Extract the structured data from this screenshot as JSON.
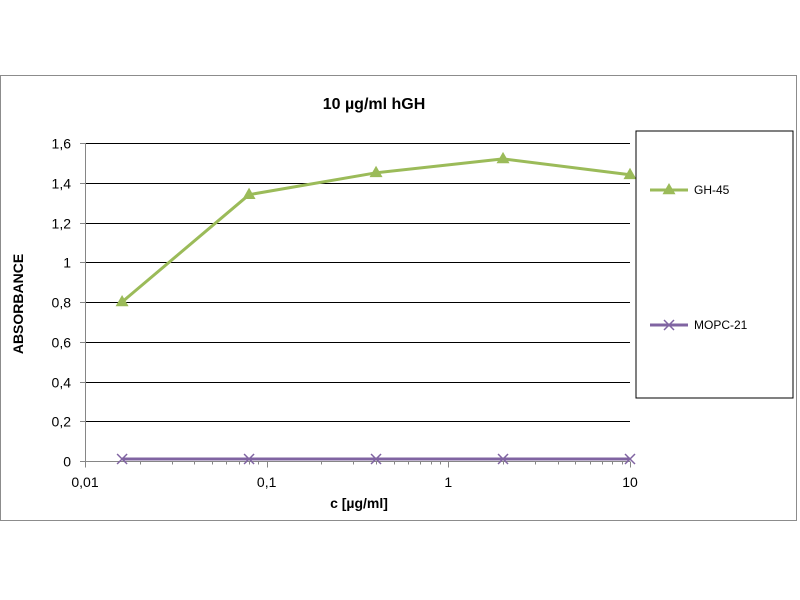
{
  "chart_data": {
    "type": "line",
    "title": "10 µg/ml hGH",
    "xlabel": "c [µg/ml]",
    "ylabel": "ABSORBANCE",
    "x_scale": "log",
    "xlim": [
      0.01,
      10
    ],
    "ylim": [
      0,
      1.6
    ],
    "x_ticks": [
      0.01,
      0.1,
      1,
      10
    ],
    "x_tick_labels": [
      "0,01",
      "0,1",
      "1",
      "10"
    ],
    "y_ticks": [
      0,
      0.2,
      0.4,
      0.6,
      0.8,
      1,
      1.2,
      1.4,
      1.6
    ],
    "y_tick_labels": [
      "0",
      "0,2",
      "0,4",
      "0,6",
      "0,8",
      "1",
      "1,2",
      "1,4",
      "1,6"
    ],
    "grid": "horizontal",
    "legend_position": "right",
    "x": [
      0.016,
      0.08,
      0.4,
      2,
      10
    ],
    "series": [
      {
        "name": "GH-45",
        "values": [
          0.8,
          1.34,
          1.45,
          1.52,
          1.44
        ],
        "color": "#9bbb59",
        "marker": "triangle"
      },
      {
        "name": "MOPC-21",
        "values": [
          0.01,
          0.01,
          0.01,
          0.01,
          0.01
        ],
        "color": "#8064a2",
        "marker": "x"
      }
    ]
  }
}
